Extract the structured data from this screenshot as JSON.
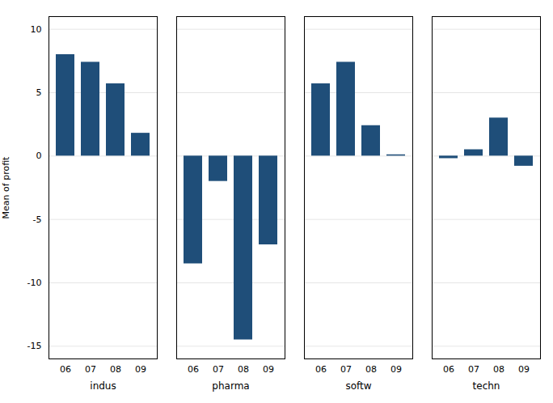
{
  "chart_data": {
    "type": "bar",
    "categories": [
      "06",
      "07",
      "08",
      "09"
    ],
    "series": [
      {
        "name": "indus",
        "color": "#1F4E79",
        "values": [
          8.0,
          7.4,
          5.7,
          1.8
        ]
      },
      {
        "name": "pharma",
        "color": "#1F4E79",
        "values": [
          -8.5,
          -2.0,
          -14.5,
          -7.0
        ]
      },
      {
        "name": "softw",
        "color": "#1F4E79",
        "values": [
          5.7,
          7.4,
          2.4,
          0.1
        ]
      },
      {
        "name": "techn",
        "color": "#1F4E79",
        "values": [
          -0.2,
          0.5,
          3.0,
          -0.8
        ]
      }
    ],
    "ylabel": "Mean of profit",
    "ylim": [
      -16,
      11
    ],
    "yticks": [
      -15,
      -10,
      -5,
      0,
      5,
      10
    ],
    "grid": true
  }
}
